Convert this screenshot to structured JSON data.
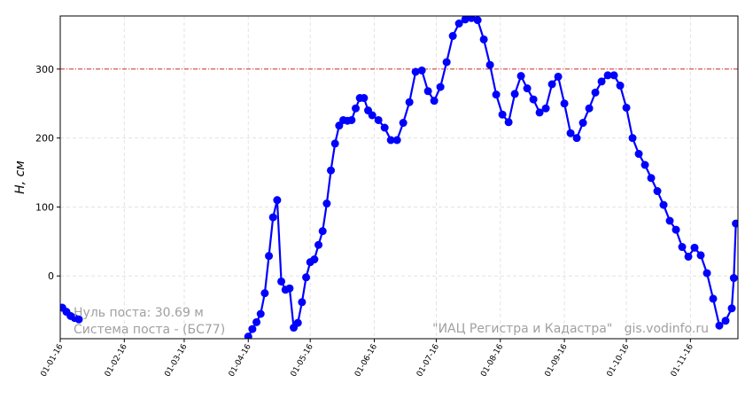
{
  "chart_data": {
    "type": "line",
    "ylabel": "H, см",
    "annotations": [
      "Нуль поста: 30.69 м",
      "Система поста - (БС77)",
      "\"ИАЦ Регистра и Кадастра\"   gis.vodinfo.ru"
    ],
    "reference_line": {
      "value": 300,
      "color": "#d62728"
    },
    "grid": true,
    "xlim": [
      "2016-01-01",
      "2016-11-24"
    ],
    "xticks": [
      {
        "value": "2016-01-01",
        "label": "01-01-16"
      },
      {
        "value": "2016-02-01",
        "label": "01-02-16"
      },
      {
        "value": "2016-03-01",
        "label": "01-03-16"
      },
      {
        "value": "2016-04-01",
        "label": "01-04-16"
      },
      {
        "value": "2016-05-01",
        "label": "01-05-16"
      },
      {
        "value": "2016-06-01",
        "label": "01-06-16"
      },
      {
        "value": "2016-07-01",
        "label": "01-07-16"
      },
      {
        "value": "2016-08-01",
        "label": "01-08-16"
      },
      {
        "value": "2016-09-01",
        "label": "01-09-16"
      },
      {
        "value": "2016-10-01",
        "label": "01-10-16"
      },
      {
        "value": "2016-11-01",
        "label": "01-11-16"
      }
    ],
    "ylim": [
      -91,
      377
    ],
    "yticks": [
      0,
      100,
      200,
      300
    ],
    "x": [
      "2016-01-02",
      "2016-01-04",
      "2016-01-06",
      "2016-01-08",
      "2016-01-10",
      "2016-02-20",
      "2016-04-01",
      "2016-04-03",
      "2016-04-05",
      "2016-04-07",
      "2016-04-09",
      "2016-04-11",
      "2016-04-13",
      "2016-04-15",
      "2016-04-17",
      "2016-04-19",
      "2016-04-21",
      "2016-04-23",
      "2016-04-25",
      "2016-04-27",
      "2016-04-29",
      "2016-05-01",
      "2016-05-03",
      "2016-05-05",
      "2016-05-07",
      "2016-05-09",
      "2016-05-11",
      "2016-05-13",
      "2016-05-15",
      "2016-05-17",
      "2016-05-19",
      "2016-05-21",
      "2016-05-23",
      "2016-05-25",
      "2016-05-27",
      "2016-05-29",
      "2016-05-31",
      "2016-06-03",
      "2016-06-06",
      "2016-06-09",
      "2016-06-12",
      "2016-06-15",
      "2016-06-18",
      "2016-06-21",
      "2016-06-24",
      "2016-06-27",
      "2016-06-30",
      "2016-07-03",
      "2016-07-06",
      "2016-07-09",
      "2016-07-12",
      "2016-07-15",
      "2016-07-18",
      "2016-07-21",
      "2016-07-24",
      "2016-07-27",
      "2016-07-30",
      "2016-08-02",
      "2016-08-05",
      "2016-08-08",
      "2016-08-11",
      "2016-08-14",
      "2016-08-17",
      "2016-08-20",
      "2016-08-23",
      "2016-08-26",
      "2016-08-29",
      "2016-09-01",
      "2016-09-04",
      "2016-09-07",
      "2016-09-10",
      "2016-09-13",
      "2016-09-16",
      "2016-09-19",
      "2016-09-22",
      "2016-09-25",
      "2016-09-28",
      "2016-10-01",
      "2016-10-04",
      "2016-10-07",
      "2016-10-10",
      "2016-10-13",
      "2016-10-16",
      "2016-10-19",
      "2016-10-22",
      "2016-10-25",
      "2016-10-28",
      "2016-10-31",
      "2016-11-03",
      "2016-11-06",
      "2016-11-09",
      "2016-11-12",
      "2016-11-15",
      "2016-11-18",
      "2016-11-21",
      "2016-11-22",
      "2016-11-23"
    ],
    "series": [
      {
        "color": "#0000ff",
        "values": [
          -46,
          -52,
          -58,
          -61,
          -63,
          null,
          -88,
          -77,
          -67,
          -55,
          -25,
          29,
          85,
          110,
          -8,
          -20,
          -18,
          -75,
          -68,
          -38,
          -2,
          20,
          24,
          45,
          65,
          105,
          153,
          192,
          218,
          226,
          225,
          226,
          243,
          258,
          258,
          240,
          233,
          226,
          215,
          197,
          197,
          222,
          252,
          296,
          298,
          268,
          254,
          274,
          310,
          348,
          366,
          372,
          374,
          371,
          343,
          306,
          263,
          234,
          223,
          264,
          290,
          272,
          256,
          237,
          243,
          278,
          289,
          250,
          207,
          200,
          222,
          243,
          266,
          282,
          291,
          291,
          276,
          244,
          200,
          177,
          161,
          142,
          123,
          103,
          80,
          67,
          42,
          28,
          41,
          30,
          4,
          -33,
          -72,
          -65,
          -47,
          -3,
          76
        ]
      }
    ]
  }
}
